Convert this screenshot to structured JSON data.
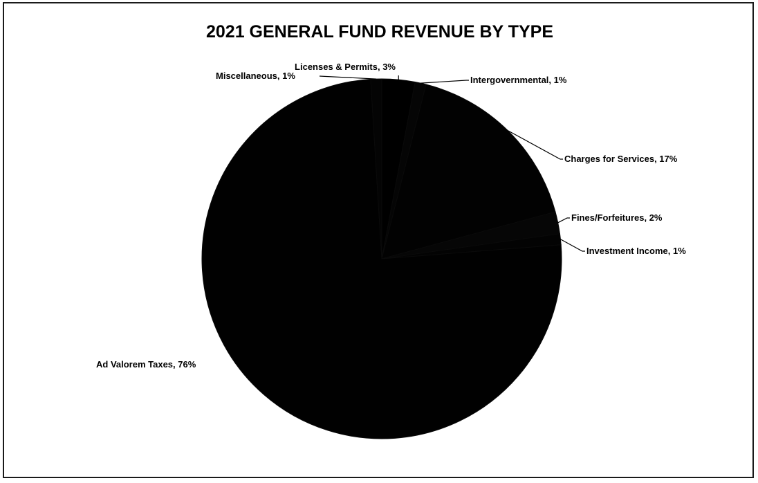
{
  "chart_data": {
    "type": "pie",
    "title": "2021 GENERAL FUND REVENUE BY TYPE",
    "slices": [
      {
        "name": "Licenses & Permits",
        "value": 3,
        "label": "Licenses & Permits, 3%"
      },
      {
        "name": "Intergovernmental",
        "value": 1,
        "label": "Intergovernmental, 1%"
      },
      {
        "name": "Charges for Services",
        "value": 17,
        "label": "Charges for Services, 17%"
      },
      {
        "name": "Fines/Forfeitures",
        "value": 2,
        "label": "Fines/Forfeitures, 2%"
      },
      {
        "name": "Investment Income",
        "value": 1,
        "label": "Investment Income, 1%"
      },
      {
        "name": "Ad Valorem Taxes",
        "value": 76,
        "label": "Ad Valorem Taxes, 76%"
      },
      {
        "name": "Miscellaneous",
        "value": 1,
        "label": "Miscellaneous, 1%"
      }
    ],
    "colors": [
      "#000000",
      "#050505",
      "#020202",
      "#060606",
      "#030303",
      "#010101",
      "#040404"
    ],
    "legend": "none",
    "data_labels": "outside with leader lines"
  }
}
